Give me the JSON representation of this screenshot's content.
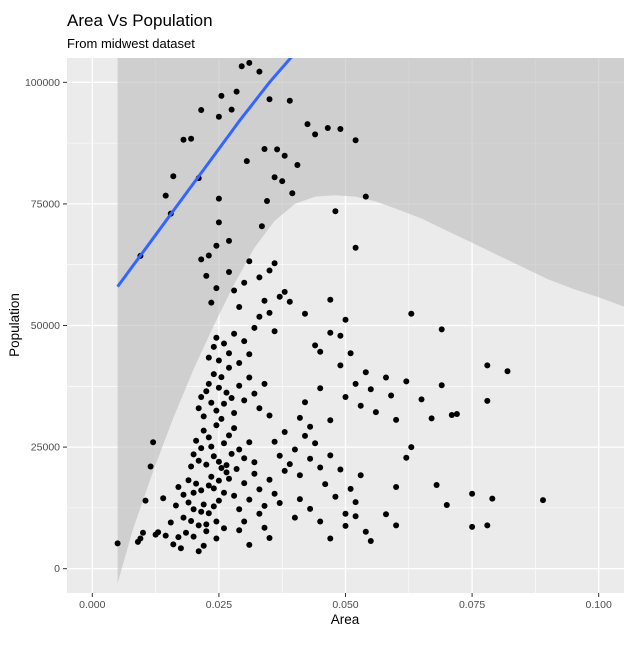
{
  "colors": {
    "panel": "#ebebeb",
    "grid_major": "#ffffff",
    "confidence_band": "#bdbdbd",
    "smooth_line": "#3366ff",
    "points": "#000000",
    "axis_text": "#4d4d4d"
  },
  "chart_data": {
    "type": "scatter",
    "title": "Area Vs Population",
    "subtitle": "From midwest dataset",
    "xlabel": "Area",
    "ylabel": "Population",
    "xlim": [
      -0.005,
      0.105
    ],
    "ylim": [
      -5000,
      105000
    ],
    "x_ticks": [
      0,
      0.025,
      0.05,
      0.075,
      0.1
    ],
    "x_tick_labels": [
      "0.000",
      "0.025",
      "0.050",
      "0.075",
      "0.100"
    ],
    "y_ticks": [
      0,
      25000,
      50000,
      75000,
      100000
    ],
    "y_tick_labels": [
      "0",
      "25000",
      "50000",
      "75000",
      "100000"
    ],
    "grid": true,
    "smooth": {
      "method": "loess",
      "line": [
        [
          0.005,
          58000
        ],
        [
          0.011,
          66500
        ],
        [
          0.017,
          75000
        ],
        [
          0.023,
          83500
        ],
        [
          0.029,
          92000
        ],
        [
          0.035,
          100000
        ],
        [
          0.04,
          106000
        ]
      ],
      "band_upper": [
        [
          0.005,
          105000
        ],
        [
          0.106,
          105000
        ]
      ],
      "band_lower": [
        [
          0.005,
          -3000
        ],
        [
          0.008,
          8000
        ],
        [
          0.012,
          20000
        ],
        [
          0.016,
          31000
        ],
        [
          0.02,
          41000
        ],
        [
          0.024,
          50000
        ],
        [
          0.028,
          58500
        ],
        [
          0.032,
          66000
        ],
        [
          0.036,
          71500
        ],
        [
          0.04,
          75000
        ],
        [
          0.044,
          76500
        ],
        [
          0.048,
          76800
        ],
        [
          0.052,
          76500
        ],
        [
          0.056,
          75500
        ],
        [
          0.06,
          74000
        ],
        [
          0.065,
          72000
        ],
        [
          0.07,
          69500
        ],
        [
          0.075,
          67000
        ],
        [
          0.08,
          64500
        ],
        [
          0.085,
          62000
        ],
        [
          0.09,
          59500
        ],
        [
          0.095,
          57500
        ],
        [
          0.1,
          55800
        ],
        [
          0.106,
          53500
        ]
      ]
    },
    "points": [
      [
        0.005,
        5200
      ],
      [
        0.009,
        5500
      ],
      [
        0.0095,
        6200
      ],
      [
        0.01,
        7400
      ],
      [
        0.0105,
        14000
      ],
      [
        0.0115,
        21000
      ],
      [
        0.012,
        26000
      ],
      [
        0.0125,
        7000
      ],
      [
        0.013,
        7500
      ],
      [
        0.014,
        14500
      ],
      [
        0.0145,
        6800
      ],
      [
        0.0155,
        9500
      ],
      [
        0.016,
        5000
      ],
      [
        0.0165,
        13000
      ],
      [
        0.017,
        6500
      ],
      [
        0.017,
        16800
      ],
      [
        0.0175,
        4200
      ],
      [
        0.018,
        10500
      ],
      [
        0.018,
        15200
      ],
      [
        0.0185,
        7400
      ],
      [
        0.019,
        13600
      ],
      [
        0.019,
        18200
      ],
      [
        0.0195,
        9800
      ],
      [
        0.02,
        6600
      ],
      [
        0.02,
        12200
      ],
      [
        0.02,
        15600
      ],
      [
        0.0205,
        17500
      ],
      [
        0.021,
        3600
      ],
      [
        0.021,
        8900
      ],
      [
        0.0215,
        11700
      ],
      [
        0.0215,
        16100
      ],
      [
        0.022,
        4700
      ],
      [
        0.022,
        13200
      ],
      [
        0.0225,
        7700
      ],
      [
        0.0225,
        9100
      ],
      [
        0.023,
        11400
      ],
      [
        0.023,
        17100
      ],
      [
        0.0235,
        18900
      ],
      [
        0.024,
        12800
      ],
      [
        0.024,
        16500
      ],
      [
        0.0245,
        6200
      ],
      [
        0.0245,
        9700
      ],
      [
        0.025,
        14000
      ],
      [
        0.025,
        18100
      ],
      [
        0.0255,
        20700
      ],
      [
        0.026,
        8300
      ],
      [
        0.026,
        15600
      ],
      [
        0.0265,
        19800
      ],
      [
        0.0195,
        21000
      ],
      [
        0.02,
        23500
      ],
      [
        0.0205,
        26300
      ],
      [
        0.021,
        22200
      ],
      [
        0.0215,
        24800
      ],
      [
        0.022,
        28400
      ],
      [
        0.0225,
        21400
      ],
      [
        0.023,
        27000
      ],
      [
        0.0235,
        25100
      ],
      [
        0.024,
        23100
      ],
      [
        0.0245,
        29500
      ],
      [
        0.025,
        22000
      ],
      [
        0.0255,
        30800
      ],
      [
        0.026,
        25800
      ],
      [
        0.0265,
        21300
      ],
      [
        0.027,
        27400
      ],
      [
        0.0275,
        23600
      ],
      [
        0.028,
        28900
      ],
      [
        0.0285,
        20500
      ],
      [
        0.029,
        24500
      ],
      [
        0.03,
        22700
      ],
      [
        0.031,
        26000
      ],
      [
        0.032,
        21900
      ],
      [
        0.021,
        33000
      ],
      [
        0.0215,
        35300
      ],
      [
        0.022,
        31300
      ],
      [
        0.0225,
        36500
      ],
      [
        0.023,
        38000
      ],
      [
        0.0235,
        34100
      ],
      [
        0.024,
        40000
      ],
      [
        0.0245,
        32500
      ],
      [
        0.025,
        37200
      ],
      [
        0.0255,
        39400
      ],
      [
        0.026,
        33900
      ],
      [
        0.0265,
        36200
      ],
      [
        0.027,
        41300
      ],
      [
        0.0275,
        35100
      ],
      [
        0.028,
        32000
      ],
      [
        0.029,
        37600
      ],
      [
        0.03,
        34600
      ],
      [
        0.031,
        39300
      ],
      [
        0.032,
        36000
      ],
      [
        0.033,
        33000
      ],
      [
        0.034,
        38000
      ],
      [
        0.035,
        31500
      ],
      [
        0.023,
        43400
      ],
      [
        0.024,
        45600
      ],
      [
        0.0245,
        47500
      ],
      [
        0.025,
        42800
      ],
      [
        0.026,
        46300
      ],
      [
        0.027,
        44300
      ],
      [
        0.028,
        48300
      ],
      [
        0.029,
        42300
      ],
      [
        0.03,
        46800
      ],
      [
        0.031,
        44100
      ],
      [
        0.032,
        49500
      ],
      [
        0.033,
        51800
      ],
      [
        0.034,
        55100
      ],
      [
        0.035,
        52600
      ],
      [
        0.036,
        48800
      ],
      [
        0.037,
        55900
      ],
      [
        0.027,
        61000
      ],
      [
        0.028,
        57200
      ],
      [
        0.029,
        53800
      ],
      [
        0.03,
        58800
      ],
      [
        0.031,
        63200
      ],
      [
        0.033,
        59900
      ],
      [
        0.035,
        61300
      ],
      [
        0.036,
        62800
      ],
      [
        0.038,
        56900
      ],
      [
        0.039,
        54900
      ],
      [
        0.042,
        52400
      ],
      [
        0.044,
        45900
      ],
      [
        0.045,
        44600
      ],
      [
        0.047,
        48500
      ],
      [
        0.027,
        18500
      ],
      [
        0.028,
        15000
      ],
      [
        0.029,
        12200
      ],
      [
        0.03,
        17600
      ],
      [
        0.031,
        14200
      ],
      [
        0.032,
        19500
      ],
      [
        0.033,
        16300
      ],
      [
        0.034,
        12900
      ],
      [
        0.035,
        18300
      ],
      [
        0.036,
        15400
      ],
      [
        0.037,
        13500
      ],
      [
        0.038,
        20100
      ],
      [
        0.029,
        7900
      ],
      [
        0.03,
        9700
      ],
      [
        0.031,
        4900
      ],
      [
        0.033,
        11300
      ],
      [
        0.034,
        8400
      ],
      [
        0.035,
        6300
      ],
      [
        0.036,
        26100
      ],
      [
        0.037,
        23200
      ],
      [
        0.038,
        28100
      ],
      [
        0.039,
        21500
      ],
      [
        0.04,
        24500
      ],
      [
        0.041,
        19200
      ],
      [
        0.042,
        27300
      ],
      [
        0.043,
        22600
      ],
      [
        0.044,
        25800
      ],
      [
        0.045,
        20800
      ],
      [
        0.046,
        17400
      ],
      [
        0.047,
        23300
      ],
      [
        0.048,
        14800
      ],
      [
        0.049,
        20400
      ],
      [
        0.05,
        11300
      ],
      [
        0.051,
        16400
      ],
      [
        0.052,
        13700
      ],
      [
        0.053,
        19200
      ],
      [
        0.04,
        10500
      ],
      [
        0.041,
        14300
      ],
      [
        0.043,
        12300
      ],
      [
        0.045,
        9700
      ],
      [
        0.047,
        6200
      ],
      [
        0.05,
        8800
      ],
      [
        0.052,
        10800
      ],
      [
        0.054,
        7600
      ],
      [
        0.055,
        5700
      ],
      [
        0.058,
        11200
      ],
      [
        0.06,
        8900
      ],
      [
        0.06,
        16800
      ],
      [
        0.062,
        22800
      ],
      [
        0.068,
        17200
      ],
      [
        0.07,
        13100
      ],
      [
        0.075,
        8600
      ],
      [
        0.078,
        8900
      ],
      [
        0.079,
        14400
      ],
      [
        0.075,
        15400
      ],
      [
        0.089,
        14100
      ],
      [
        0.041,
        31000
      ],
      [
        0.042,
        34200
      ],
      [
        0.043,
        29200
      ],
      [
        0.045,
        37100
      ],
      [
        0.047,
        30500
      ],
      [
        0.049,
        41800
      ],
      [
        0.05,
        35300
      ],
      [
        0.051,
        44300
      ],
      [
        0.052,
        38000
      ],
      [
        0.053,
        33500
      ],
      [
        0.054,
        40400
      ],
      [
        0.055,
        36900
      ],
      [
        0.056,
        32200
      ],
      [
        0.058,
        39300
      ],
      [
        0.059,
        35600
      ],
      [
        0.06,
        30600
      ],
      [
        0.062,
        38500
      ],
      [
        0.065,
        34800
      ],
      [
        0.067,
        30900
      ],
      [
        0.069,
        37700
      ],
      [
        0.071,
        31600
      ],
      [
        0.072,
        31800
      ],
      [
        0.063,
        25000
      ],
      [
        0.063,
        52400
      ],
      [
        0.069,
        49200
      ],
      [
        0.078,
        41800
      ],
      [
        0.082,
        40600
      ],
      [
        0.078,
        34500
      ],
      [
        0.052,
        66000
      ],
      [
        0.048,
        73500
      ],
      [
        0.047,
        55300
      ],
      [
        0.05,
        51200
      ],
      [
        0.049,
        47900
      ],
      [
        0.0095,
        64300
      ],
      [
        0.0145,
        76700
      ],
      [
        0.0155,
        73000
      ],
      [
        0.016,
        80700
      ],
      [
        0.018,
        88200
      ],
      [
        0.0195,
        88400
      ],
      [
        0.021,
        80300
      ],
      [
        0.0215,
        63600
      ],
      [
        0.0225,
        60200
      ],
      [
        0.023,
        64400
      ],
      [
        0.0235,
        54700
      ],
      [
        0.0245,
        57700
      ],
      [
        0.0245,
        66400
      ],
      [
        0.025,
        71200
      ],
      [
        0.025,
        92900
      ],
      [
        0.025,
        76100
      ],
      [
        0.0255,
        97200
      ],
      [
        0.027,
        67400
      ],
      [
        0.0285,
        98100
      ],
      [
        0.0295,
        103300
      ],
      [
        0.031,
        104000
      ],
      [
        0.0305,
        83800
      ],
      [
        0.033,
        102200
      ],
      [
        0.0335,
        70400
      ],
      [
        0.034,
        86300
      ],
      [
        0.0345,
        75600
      ],
      [
        0.035,
        96500
      ],
      [
        0.0365,
        86200
      ],
      [
        0.036,
        80500
      ],
      [
        0.0375,
        79700
      ],
      [
        0.038,
        84900
      ],
      [
        0.039,
        96200
      ],
      [
        0.0405,
        83000
      ],
      [
        0.0425,
        91400
      ],
      [
        0.044,
        89300
      ],
      [
        0.0465,
        90600
      ],
      [
        0.049,
        90400
      ],
      [
        0.052,
        88100
      ],
      [
        0.054,
        76500
      ],
      [
        0.0395,
        77200
      ],
      [
        0.0275,
        94400
      ],
      [
        0.0215,
        94300
      ]
    ]
  }
}
